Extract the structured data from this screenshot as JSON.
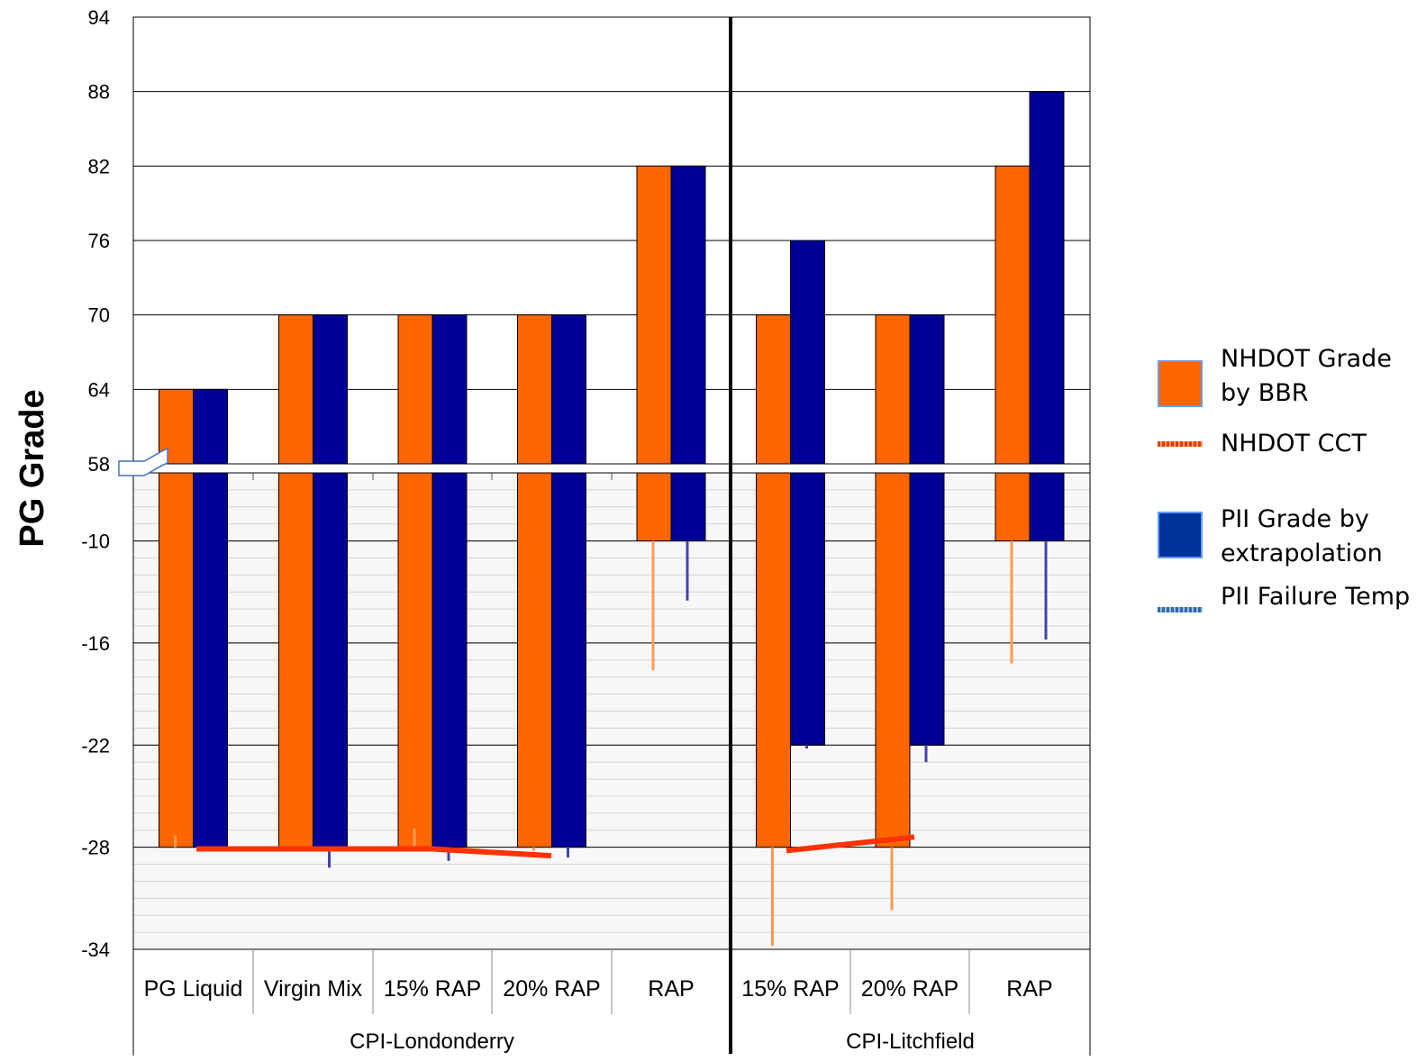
{
  "chart_data": {
    "type": "bar",
    "title": "",
    "ylabel": "PG Grade",
    "xlabel": "",
    "upper_axis": {
      "ylim": [
        58,
        94
      ],
      "ticks": [
        58,
        64,
        70,
        76,
        82,
        88,
        94
      ]
    },
    "lower_axis": {
      "ylim": [
        -34,
        -6
      ],
      "ticks": [
        -10,
        -16,
        -22,
        -28,
        -34
      ]
    },
    "groups": [
      {
        "name": "CPI-Londonderry",
        "categories": [
          "PG Liquid",
          "Virgin Mix",
          "15% RAP",
          "20% RAP",
          "RAP"
        ]
      },
      {
        "name": "CPI-Litchfield",
        "categories": [
          "15% RAP",
          "20% RAP",
          "RAP"
        ]
      }
    ],
    "series": [
      {
        "name": "NHDOT Grade by BBR",
        "color": "#ff6600",
        "high": [
          64,
          70,
          70,
          70,
          82,
          70,
          70,
          82
        ],
        "low": [
          -28,
          -28,
          -28,
          -28,
          -10,
          -28,
          -28,
          -10
        ]
      },
      {
        "name": "NHDOT CCT",
        "values": [
          -28.1,
          -28.1,
          -28.1,
          -28.5,
          null,
          -28.2,
          -27.4,
          null
        ]
      },
      {
        "name": "PII Grade by extrapolation",
        "color": "#000099",
        "high": [
          64,
          70,
          70,
          70,
          82,
          76,
          70,
          88
        ],
        "low": [
          -28,
          -28,
          -28,
          -28,
          -10,
          -22,
          -22,
          -10
        ]
      },
      {
        "name": "PII Failure Temp",
        "values": [
          null,
          -29.2,
          -28.8,
          -28.6,
          -13.5,
          -22.2,
          -23.0,
          -15.8
        ]
      }
    ],
    "failure_temps_bbr": [
      -27.3,
      null,
      -26.9,
      -28.2,
      -17.6,
      -33.8,
      -31.7,
      -17.2
    ],
    "grid": true,
    "legend_position": "right"
  },
  "legend": [
    {
      "label": "NHDOT Grade by BBR",
      "icon": "orange-box-swatch",
      "color": "#ff6600"
    },
    {
      "label": "NHDOT CCT",
      "icon": "orange-dotted-line-swatch",
      "color": "#e03c00"
    },
    {
      "label": "PII Grade by extrapolation",
      "icon": "blue-box-swatch",
      "color": "#003399"
    },
    {
      "label": "PII Failure Temp",
      "icon": "blue-dotted-line-swatch",
      "color": "#3366aa"
    }
  ]
}
